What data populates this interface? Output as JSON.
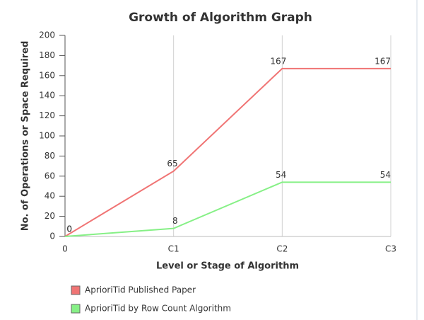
{
  "chart_data": {
    "type": "line",
    "title": "Growth of Algorithm Graph",
    "x_label": "Level or Stage of Algorithm",
    "y_label": "No. of Operations or Space Required",
    "categories": [
      "0",
      "C1",
      "C2",
      "C3"
    ],
    "series": [
      {
        "name": "AprioriTid Published Paper",
        "color": "#f07474",
        "values": [
          0,
          65,
          167,
          167
        ]
      },
      {
        "name": "AprioriTid by Row Count Algorithm",
        "color": "#86f086",
        "values": [
          0,
          8,
          54,
          54
        ]
      }
    ],
    "ylim": [
      0,
      200
    ],
    "yticks": [
      0,
      20,
      40,
      60,
      80,
      100,
      120,
      140,
      160,
      180,
      200
    ],
    "grid": "x"
  }
}
